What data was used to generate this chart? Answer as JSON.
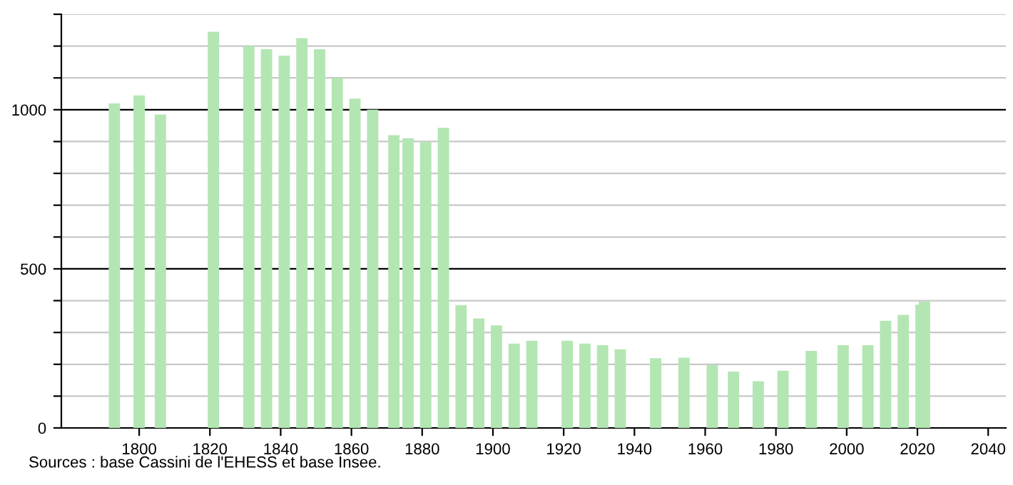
{
  "chart_data": {
    "type": "bar",
    "x": [
      1793,
      1800,
      1806,
      1821,
      1831,
      1836,
      1841,
      1846,
      1851,
      1856,
      1861,
      1866,
      1872,
      1876,
      1881,
      1886,
      1891,
      1896,
      1901,
      1906,
      1911,
      1921,
      1926,
      1931,
      1936,
      1946,
      1954,
      1962,
      1968,
      1975,
      1982,
      1990,
      1999,
      2006,
      2011,
      2016,
      2021,
      2022
    ],
    "values": [
      1020,
      1045,
      985,
      1245,
      1200,
      1190,
      1170,
      1225,
      1190,
      1100,
      1035,
      1000,
      920,
      910,
      898,
      943,
      386,
      344,
      322,
      265,
      274,
      274,
      265,
      260,
      247,
      219,
      221,
      198,
      177,
      147,
      180,
      242,
      260,
      260,
      337,
      355,
      388,
      397
    ],
    "color": "#b3e6b3",
    "xlim": [
      1778,
      2045
    ],
    "xticks": [
      1800,
      1820,
      1840,
      1860,
      1880,
      1900,
      1920,
      1940,
      1960,
      1980,
      2000,
      2020,
      2040
    ],
    "ylim": [
      0,
      1300
    ],
    "yticks": [
      0,
      {
        "value": 100,
        "label": null
      },
      {
        "value": 200,
        "label": null
      },
      {
        "value": 300,
        "label": null
      },
      {
        "value": 400,
        "label": null
      },
      500,
      {
        "value": 600,
        "label": null
      },
      {
        "value": 700,
        "label": null
      },
      {
        "value": 800,
        "label": null
      },
      {
        "value": 900,
        "label": null
      },
      1000,
      {
        "value": 1100,
        "label": null
      },
      {
        "value": 1200,
        "label": null
      },
      {
        "value": 1300,
        "label": null
      }
    ],
    "grid": "y",
    "annotations": [
      "Sources : base Cassini de l'EHESS et base Insee."
    ]
  }
}
